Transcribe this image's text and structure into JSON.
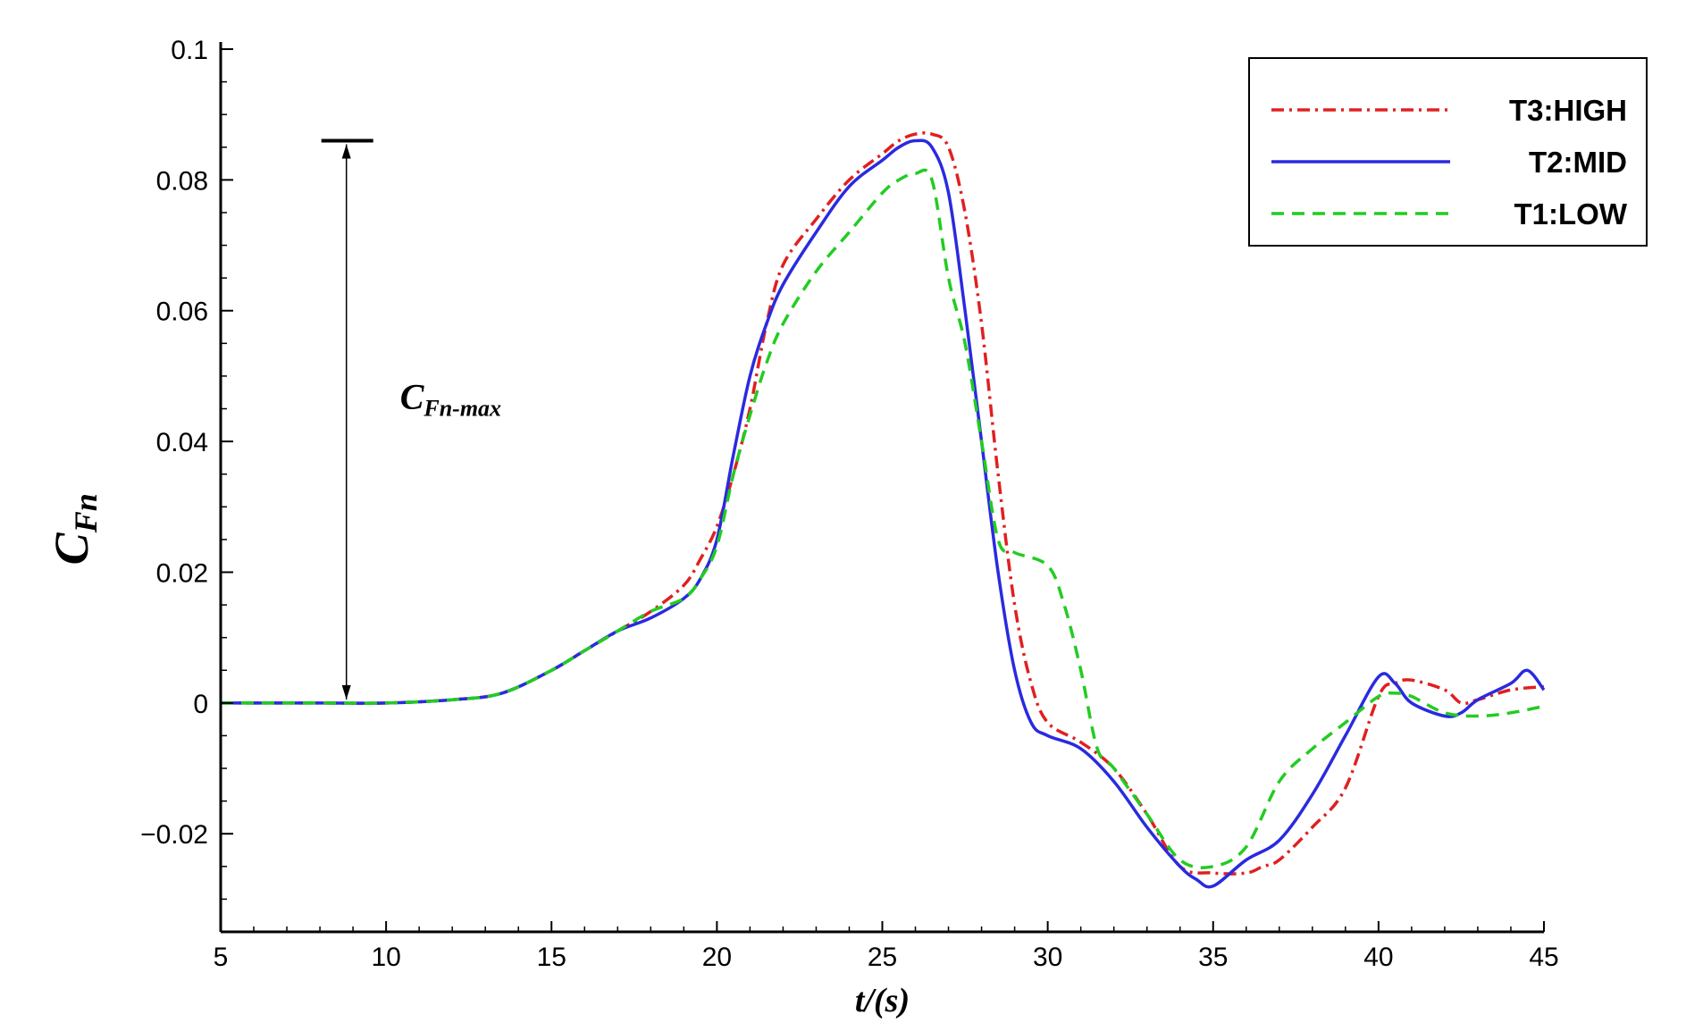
{
  "chart_data": {
    "type": "line",
    "xlabel": "t/(s)",
    "ylabel_main": "C",
    "ylabel_sub": "Fn",
    "annotation_main": "C",
    "annotation_sub": "Fn-max",
    "annotation_y_range": [
      0,
      0.086
    ],
    "annotation_x": 8.8,
    "xlim": [
      5,
      45
    ],
    "ylim": [
      -0.035,
      0.1
    ],
    "xticks": [
      5,
      10,
      15,
      20,
      25,
      30,
      35,
      40,
      45
    ],
    "xtick_labels": [
      "5",
      "10",
      "15",
      "20",
      "25",
      "30",
      "35",
      "40",
      "45"
    ],
    "yticks": [
      -0.02,
      0,
      0.02,
      0.04,
      0.06,
      0.08,
      0.1
    ],
    "ytick_labels": [
      "−0.02",
      "0",
      "0.02",
      "0.04",
      "0.06",
      "0.08",
      "0.1"
    ],
    "legend_position": "top-right",
    "grid": false,
    "series": [
      {
        "name": "T3:HIGH",
        "color": "#e02020",
        "style": "dashdot",
        "x": [
          5,
          8,
          10,
          12,
          13.5,
          15,
          16,
          17,
          18,
          19,
          19.5,
          20,
          20.5,
          21,
          21.5,
          22,
          23,
          24,
          25,
          25.5,
          26,
          26.5,
          27,
          27.5,
          28,
          28.5,
          29,
          29.5,
          30,
          31,
          32,
          33,
          34,
          35,
          36,
          36.5,
          37,
          38,
          39,
          40,
          40.5,
          41,
          42,
          42.5,
          43,
          44,
          45
        ],
        "y": [
          0,
          0,
          0,
          0.0005,
          0.0015,
          0.005,
          0.008,
          0.011,
          0.014,
          0.018,
          0.022,
          0.027,
          0.035,
          0.045,
          0.058,
          0.067,
          0.074,
          0.08,
          0.084,
          0.086,
          0.087,
          0.087,
          0.085,
          0.075,
          0.058,
          0.035,
          0.015,
          0.003,
          -0.003,
          -0.006,
          -0.01,
          -0.017,
          -0.025,
          -0.026,
          -0.026,
          -0.025,
          -0.024,
          -0.019,
          -0.013,
          0.001,
          0.003,
          0.0035,
          0.002,
          0,
          0.0005,
          0.002,
          0.0025
        ]
      },
      {
        "name": "T2:MID",
        "color": "#2a2ae0",
        "style": "solid",
        "x": [
          5,
          8,
          10,
          12,
          13.5,
          15,
          16,
          17,
          18,
          19,
          19.5,
          20,
          20.5,
          21,
          21.5,
          22,
          23,
          24,
          25,
          25.5,
          26,
          26.5,
          27,
          27.5,
          28,
          28.5,
          29,
          29.5,
          30,
          31,
          32,
          33,
          34,
          34.5,
          35,
          36,
          37,
          38,
          39,
          40,
          40.5,
          41,
          42,
          42.5,
          43,
          44,
          44.5,
          45
        ],
        "y": [
          0,
          0,
          0,
          0.0005,
          0.0015,
          0.005,
          0.008,
          0.011,
          0.013,
          0.016,
          0.019,
          0.025,
          0.038,
          0.05,
          0.058,
          0.064,
          0.072,
          0.079,
          0.083,
          0.085,
          0.086,
          0.085,
          0.078,
          0.06,
          0.04,
          0.02,
          0.005,
          -0.003,
          -0.005,
          -0.007,
          -0.012,
          -0.019,
          -0.025,
          -0.027,
          -0.028,
          -0.024,
          -0.021,
          -0.014,
          -0.005,
          0.004,
          0.003,
          0.0,
          -0.002,
          -0.0015,
          0.0005,
          0.003,
          0.005,
          0.002
        ]
      },
      {
        "name": "T1:LOW",
        "color": "#22cc22",
        "style": "dashed",
        "x": [
          5,
          8,
          10,
          12,
          13.5,
          15,
          16,
          17,
          18,
          19,
          19.5,
          20,
          20.5,
          21,
          21.5,
          22,
          23,
          24,
          25,
          25.5,
          26,
          26.5,
          27,
          27.5,
          28,
          28.5,
          29,
          30,
          30.5,
          31,
          31.5,
          32,
          33,
          34,
          35,
          36,
          37,
          38,
          39,
          40,
          40.5,
          41,
          42,
          43,
          44,
          45
        ],
        "y": [
          0,
          0,
          0,
          0.0005,
          0.0015,
          0.005,
          0.008,
          0.011,
          0.014,
          0.016,
          0.019,
          0.024,
          0.035,
          0.044,
          0.052,
          0.058,
          0.066,
          0.072,
          0.078,
          0.08,
          0.081,
          0.08,
          0.065,
          0.055,
          0.04,
          0.025,
          0.023,
          0.021,
          0.015,
          0.005,
          -0.007,
          -0.01,
          -0.017,
          -0.024,
          -0.025,
          -0.022,
          -0.012,
          -0.007,
          -0.003,
          0.001,
          0.0015,
          0.001,
          -0.0015,
          -0.002,
          -0.0015,
          -0.0005
        ]
      }
    ]
  }
}
